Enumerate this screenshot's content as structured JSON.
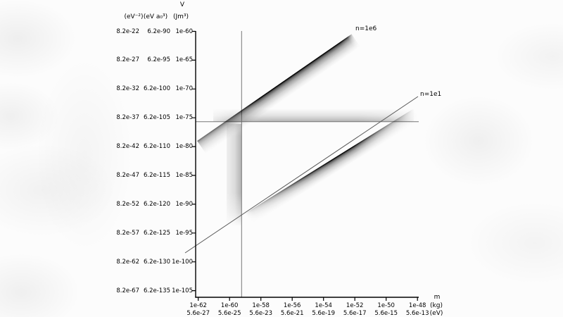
{
  "colors": {
    "background": "#fcfcfc",
    "axis": "#000000",
    "crosshair_line": "#777777",
    "series_line": "#555555",
    "band": "#000000",
    "text": "#000000"
  },
  "chart_data": {
    "type": "line",
    "scale": "log-log",
    "title": "",
    "ylabel": "V",
    "y_unit_labels": [
      "(eV⁻²)",
      "(eV a₀³)",
      "(Jm³)"
    ],
    "xlabel": "m",
    "x_unit_labels": [
      "(kg)",
      "(eV)"
    ],
    "y_ticks": {
      "col1": [
        "8.2e-22",
        "8.2e-27",
        "8.2e-32",
        "8.2e-37",
        "8.2e-42",
        "8.2e-47",
        "8.2e-52",
        "8.2e-57",
        "8.2e-62",
        "8.2e-67"
      ],
      "col2": [
        "6.2e-90",
        "6.2e-95",
        "6.2e-100",
        "6.2e-105",
        "6.2e-110",
        "6.2e-115",
        "6.2e-120",
        "6.2e-125",
        "6.2e-130",
        "6.2e-135"
      ],
      "col3": [
        "1e-60",
        "1e-65",
        "1e-70",
        "1e-75",
        "1e-80",
        "1e-85",
        "1e-90",
        "1e-95",
        "1e-100",
        "1e-105"
      ]
    },
    "x_ticks": {
      "kg": [
        "1e-62",
        "1e-60",
        "1e-58",
        "1e-56",
        "1e-54",
        "1e-52",
        "1e-50",
        "1e-48"
      ],
      "eV": [
        "5.6e-27",
        "5.6e-25",
        "5.6e-23",
        "5.6e-21",
        "5.6e-19",
        "5.6e-17",
        "5.6e-15",
        "5.6e-13"
      ]
    },
    "x_range_log10_kg": [
      -62,
      -48
    ],
    "y_range_log10_Jm3": [
      -60,
      -105
    ],
    "grid": false,
    "series": [
      {
        "name": "n=1e6",
        "style": "gradient-band",
        "relation": "V ∝ m²",
        "log10_m_kg_endpoints": [
          -62.1,
          -52.2
        ],
        "log10_V_Jm3_endpoints": [
          -79.0,
          -60.4
        ]
      },
      {
        "name": "n=1e1",
        "style": "thin-line",
        "relation": "V ∝ m²",
        "log10_m_kg_endpoints": [
          -62.8,
          -48.0
        ],
        "log10_V_Jm3_endpoints": [
          -98.4,
          -71.3
        ]
      },
      {
        "name": "n=1e1 band",
        "style": "gradient-band",
        "relation": "V ∝ m²",
        "log10_m_kg_endpoints": [
          -59.0,
          -48.2
        ],
        "log10_V_Jm3_endpoints": [
          -91.6,
          -73.4
        ]
      }
    ],
    "reference_lines": [
      {
        "orientation": "vertical",
        "log10_m_kg": -59.2
      },
      {
        "orientation": "horizontal",
        "log10_V_Jm3": -75.7
      }
    ],
    "reference_bands": [
      {
        "orientation": "horizontal",
        "log10_V_Jm3_range": [
          -75.7,
          -73.5
        ],
        "log10_m_kg_range": [
          -61.0,
          -48.2
        ]
      },
      {
        "orientation": "vertical",
        "log10_m_kg_range": [
          -60.2,
          -59.2
        ],
        "log10_V_Jm3_range": [
          -93.7,
          -76.1
        ]
      }
    ],
    "annotations": [
      {
        "text": "n=1e6",
        "attached_to": "n=1e6"
      },
      {
        "text": "n=1e1",
        "attached_to": "n=1e1"
      }
    ]
  }
}
